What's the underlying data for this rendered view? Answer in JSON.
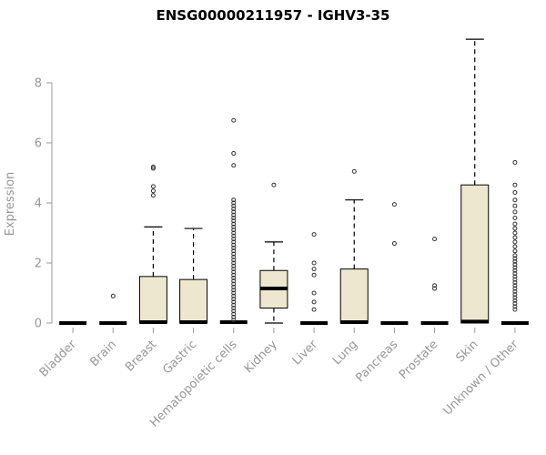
{
  "chart_data": {
    "type": "boxplot",
    "title": "ENSG00000211957 - IGHV3-35",
    "ylabel": "Expression",
    "xlabel": "",
    "ylim": [
      0,
      9.6
    ],
    "yticks": [
      0,
      2,
      4,
      6,
      8
    ],
    "grid": false,
    "legend": "none",
    "box_fill": "#EDE7CF",
    "box_stroke": "#000000",
    "axis_color": "#999999",
    "axis_text_color": "#969696",
    "title_color": "#000000",
    "categories": [
      "Bladder",
      "Brain",
      "Breast",
      "Gastric",
      "Hematopoietic cells",
      "Kidney",
      "Liver",
      "Lung",
      "Pancreas",
      "Prostate",
      "Skin",
      "Unknown / Other"
    ],
    "boxes": [
      {
        "category": "Bladder",
        "whisker_low": 0,
        "q1": 0,
        "median": 0,
        "q3": 0,
        "whisker_high": 0,
        "outliers": []
      },
      {
        "category": "Brain",
        "whisker_low": 0,
        "q1": 0,
        "median": 0,
        "q3": 0,
        "whisker_high": 0,
        "outliers": [
          0.9
        ]
      },
      {
        "category": "Breast",
        "whisker_low": 0,
        "q1": 0,
        "median": 0.03,
        "q3": 1.55,
        "whisker_high": 3.2,
        "outliers": [
          4.25,
          4.4,
          4.55,
          5.15,
          5.2
        ]
      },
      {
        "category": "Gastric",
        "whisker_low": 0,
        "q1": 0,
        "median": 0.03,
        "q3": 1.45,
        "whisker_high": 3.15,
        "outliers": []
      },
      {
        "category": "Hematopoietic cells",
        "whisker_low": 0,
        "q1": 0,
        "median": 0.03,
        "q3": 0,
        "whisker_high": 0,
        "outliers": [
          0.1,
          0.2,
          0.3,
          0.4,
          0.5,
          0.6,
          0.7,
          0.8,
          0.9,
          1.0,
          1.1,
          1.2,
          1.3,
          1.4,
          1.5,
          1.6,
          1.7,
          1.8,
          1.9,
          2.0,
          2.1,
          2.2,
          2.3,
          2.4,
          2.5,
          2.6,
          2.7,
          2.8,
          2.9,
          3.0,
          3.1,
          3.2,
          3.3,
          3.4,
          3.5,
          3.6,
          3.7,
          3.8,
          3.9,
          4.0,
          4.1,
          5.25,
          5.65,
          6.75
        ]
      },
      {
        "category": "Kidney",
        "whisker_low": 0,
        "q1": 0.5,
        "median": 1.15,
        "q3": 1.75,
        "whisker_high": 2.7,
        "outliers": [
          4.6
        ]
      },
      {
        "category": "Liver",
        "whisker_low": 0,
        "q1": 0,
        "median": 0,
        "q3": 0,
        "whisker_high": 0,
        "outliers": [
          0.45,
          0.7,
          1.0,
          1.6,
          1.8,
          2.0,
          2.95
        ]
      },
      {
        "category": "Lung",
        "whisker_low": 0,
        "q1": 0,
        "median": 0.03,
        "q3": 1.8,
        "whisker_high": 4.1,
        "outliers": [
          5.05
        ]
      },
      {
        "category": "Pancreas",
        "whisker_low": 0,
        "q1": 0,
        "median": 0,
        "q3": 0,
        "whisker_high": 0,
        "outliers": [
          2.65,
          3.95
        ]
      },
      {
        "category": "Prostate",
        "whisker_low": 0,
        "q1": 0,
        "median": 0,
        "q3": 0,
        "whisker_high": 0,
        "outliers": [
          1.15,
          1.25,
          2.8
        ]
      },
      {
        "category": "Skin",
        "whisker_low": 0,
        "q1": 0,
        "median": 0.05,
        "q3": 4.6,
        "whisker_high": 9.45,
        "outliers": []
      },
      {
        "category": "Unknown / Other",
        "whisker_low": 0,
        "q1": 0,
        "median": 0,
        "q3": 0,
        "whisker_high": 0,
        "outliers": [
          0.45,
          0.55,
          0.65,
          0.75,
          0.85,
          0.95,
          1.05,
          1.15,
          1.25,
          1.35,
          1.45,
          1.55,
          1.65,
          1.75,
          1.85,
          1.95,
          2.05,
          2.15,
          2.25,
          2.4,
          2.55,
          2.7,
          2.85,
          3.0,
          3.15,
          3.3,
          3.5,
          3.7,
          3.9,
          4.1,
          4.35,
          4.6,
          5.35
        ]
      }
    ]
  }
}
